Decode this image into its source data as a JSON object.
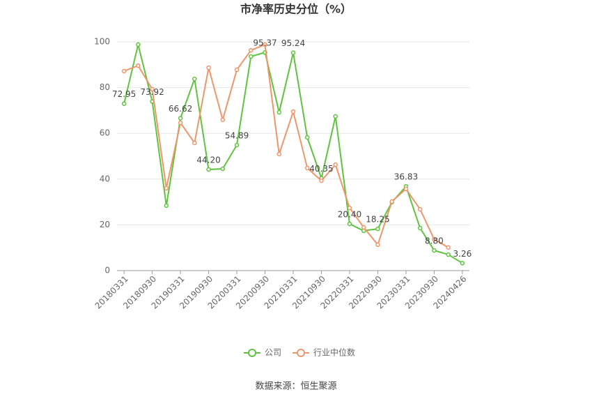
{
  "chart_data": {
    "type": "line",
    "title": "市净率历史分位（%）",
    "categories": [
      "20180331",
      null,
      "20180930",
      null,
      "20190331",
      null,
      "20190930",
      null,
      "20200331",
      null,
      "20200930",
      null,
      "20210331",
      null,
      "20210930",
      null,
      "20220331",
      null,
      "20220930",
      null,
      "20230331",
      null,
      "20230930",
      null,
      "20240426"
    ],
    "series": [
      {
        "name": "公司",
        "color": "#5ec43d",
        "values": [
          72.95,
          98.8,
          73.92,
          28.4,
          66.62,
          83.8,
          44.2,
          44.5,
          54.89,
          93.6,
          95.37,
          69.2,
          95.24,
          58.2,
          40.35,
          67.4,
          20.4,
          17.4,
          18.25,
          29.9,
          36.83,
          18.6,
          8.8,
          7,
          3.26
        ],
        "value_labels": [
          "72.95",
          null,
          "73.92",
          null,
          "66.62",
          null,
          "44.20",
          null,
          "54.89",
          null,
          "95.37",
          null,
          "95.24",
          null,
          "40.35",
          null,
          "20.40",
          null,
          "18.25",
          null,
          "36.83",
          null,
          "8.80",
          null,
          "3.26"
        ]
      },
      {
        "name": "行业中位数",
        "color": "#f0956a",
        "values": [
          87.2,
          89.6,
          79.3,
          36,
          64.6,
          55.8,
          88.7,
          65.9,
          87.8,
          96.3,
          98.8,
          50.9,
          69.5,
          44.8,
          39.3,
          46.3,
          27.4,
          18.9,
          11.3,
          30.2,
          35.7,
          26.8,
          13.7,
          10.1,
          null
        ]
      }
    ],
    "ylim": [
      0,
      100
    ],
    "yticks": [
      0,
      20,
      40,
      60,
      80,
      100
    ],
    "grid": true,
    "source": "数据来源：恒生聚源"
  }
}
